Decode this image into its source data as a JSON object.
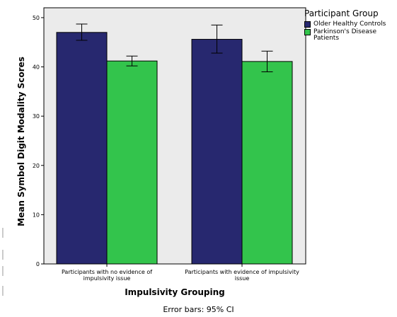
{
  "chart_data": {
    "type": "bar",
    "categories": [
      [
        "Participants with no evidence of",
        "impulsivity issue"
      ],
      [
        "Participants with evidence of impulsivity",
        "issue"
      ]
    ],
    "xlabel": "Impulsivity Grouping",
    "ylabel": "Mean Symbol Digit Modality Scores",
    "ylim": [
      0,
      52
    ],
    "yticks": [
      0,
      10,
      20,
      30,
      40,
      50
    ],
    "grid": false,
    "legend_title": "Participant Group",
    "legend_placement": "top-right",
    "series": [
      {
        "name": "Older Healthy Controls",
        "color": "#27286f",
        "values": [
          47.0,
          45.6
        ],
        "ci_low": [
          45.4,
          42.8
        ],
        "ci_high": [
          48.7,
          48.5
        ]
      },
      {
        "name": "Parkinson's Disease Patients",
        "color": "#33c44c",
        "values": [
          41.2,
          41.1
        ],
        "ci_low": [
          40.2,
          39.0
        ],
        "ci_high": [
          42.2,
          43.2
        ]
      }
    ],
    "note": "Error bars: 95% CI",
    "plot_background": "#ebebeb"
  }
}
